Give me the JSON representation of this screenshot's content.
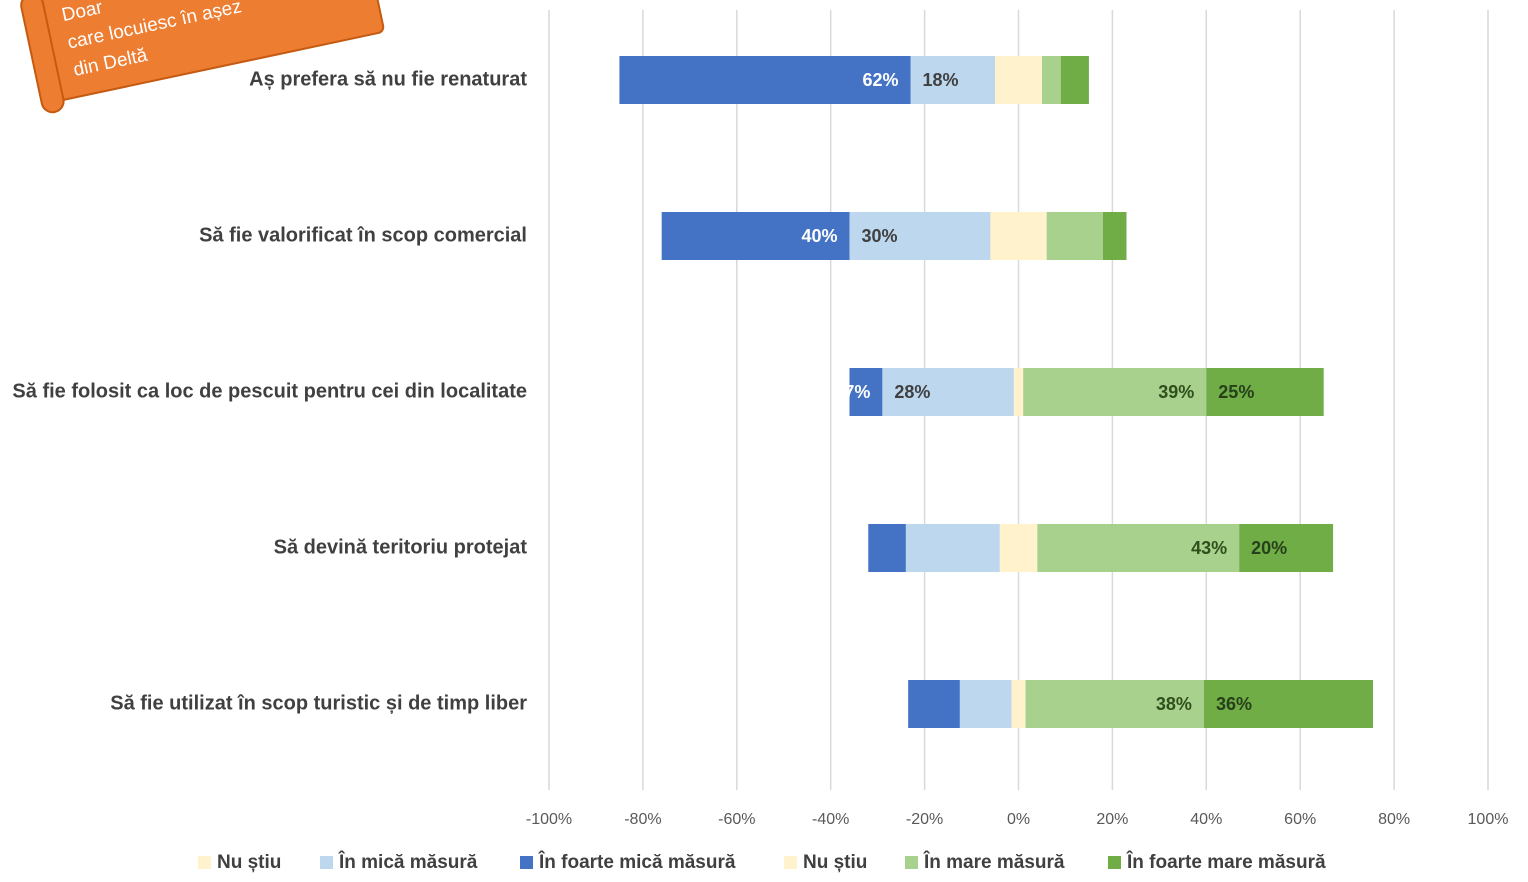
{
  "annotation": [
    "Doar",
    "care locuiesc în așez",
    "din Deltă"
  ],
  "chart_data": {
    "type": "diverging-bar",
    "categories": [
      "Aș prefera să nu fie renaturat",
      "Să fie valorificat în scop comercial",
      "Să fie folosit ca loc de pescuit pentru cei din localitate",
      "Să devină teritoriu protejat",
      "Să fie utilizat în scop turistic și de timp liber"
    ],
    "series": [
      {
        "name": "Nu știu",
        "color": "#fff2cc",
        "values": [
          -5,
          -6,
          -1,
          -4,
          -1.5
        ],
        "value_labels": [
          null,
          null,
          null,
          null,
          null
        ]
      },
      {
        "name": "În mică măsură",
        "color": "#bdd7ee",
        "values": [
          -18,
          -30,
          -28,
          -20,
          -11
        ],
        "value_labels": [
          "18%",
          "30%",
          "28%",
          null,
          null
        ]
      },
      {
        "name": "În foarte mică măsură",
        "color": "#4472c4",
        "values": [
          -62,
          -40,
          -7,
          -8,
          -11
        ],
        "value_labels": [
          "62%",
          "40%",
          "7%",
          null,
          null
        ]
      },
      {
        "name": "Nu știu",
        "color": "#fff2cc",
        "values": [
          5,
          6,
          1,
          4,
          1.5
        ],
        "value_labels": [
          null,
          null,
          null,
          null,
          null
        ]
      },
      {
        "name": "În mare măsură",
        "color": "#a9d18e",
        "values": [
          4,
          12,
          39,
          43,
          38
        ],
        "value_labels": [
          null,
          null,
          "39%",
          "43%",
          "38%"
        ]
      },
      {
        "name": "În foarte mare măsură",
        "color": "#70ad47",
        "values": [
          6,
          5,
          25,
          20,
          36
        ],
        "value_labels": [
          null,
          null,
          "25%",
          "20%",
          "36%"
        ]
      }
    ],
    "xlim": [
      -100,
      100
    ],
    "xticks": [
      {
        "value": -100,
        "label": "-100%"
      },
      {
        "value": -80,
        "label": "-80%"
      },
      {
        "value": -60,
        "label": "-60%"
      },
      {
        "value": -40,
        "label": "-40%"
      },
      {
        "value": -20,
        "label": "-20%"
      },
      {
        "value": 0,
        "label": "0%"
      },
      {
        "value": 20,
        "label": "20%"
      },
      {
        "value": 40,
        "label": "40%"
      },
      {
        "value": 60,
        "label": "60%"
      },
      {
        "value": 80,
        "label": "80%"
      },
      {
        "value": 100,
        "label": "100%"
      }
    ],
    "grid": true,
    "legend": "bottom"
  }
}
